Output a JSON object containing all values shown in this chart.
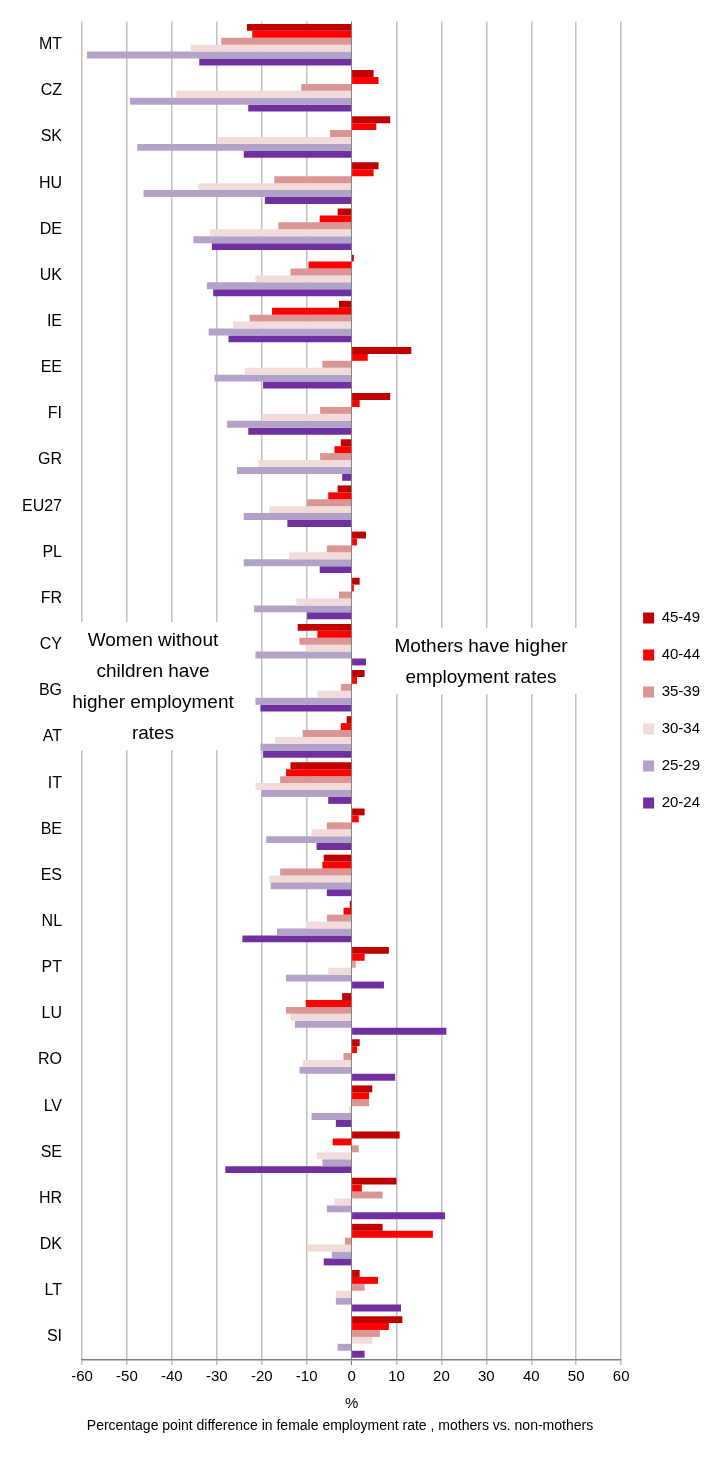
{
  "chart_data": {
    "type": "bar",
    "orientation": "horizontal",
    "xlabel": "%",
    "annotations": [
      "Women without children have higher employment rates",
      "Mothers have higher employment rates",
      "Percentage point difference in female employment rate , mothers vs. non-mothers"
    ],
    "categories": [
      "MT",
      "CZ",
      "SK",
      "HU",
      "DE",
      "UK",
      "IE",
      "EE",
      "FI",
      "GR",
      "EU27",
      "PL",
      "FR",
      "CY",
      "BG",
      "AT",
      "IT",
      "BE",
      "ES",
      "NL",
      "PT",
      "LU",
      "RO",
      "LV",
      "SE",
      "HR",
      "DK",
      "LT",
      "SI"
    ],
    "series": [
      {
        "name": "45-49",
        "color": "#c00000",
        "values": [
          -23.3,
          4.9,
          8.6,
          6.0,
          -3.1,
          0.5,
          -2.8,
          13.3,
          8.6,
          -2.4,
          -3.1,
          3.2,
          1.8,
          -12.0,
          2.9,
          -1.1,
          -13.6,
          2.9,
          -6.2,
          -0.4,
          8.3,
          -2.1,
          1.8,
          4.6,
          10.7,
          10.0,
          6.9,
          1.8,
          11.3
        ]
      },
      {
        "name": "40-44",
        "color": "#ff0000",
        "values": [
          -22.1,
          6.0,
          5.5,
          4.9,
          -7.1,
          -9.6,
          -17.7,
          3.6,
          1.8,
          -3.8,
          -5.2,
          1.2,
          0.5,
          -7.6,
          1.2,
          -2.4,
          -14.6,
          1.6,
          -6.5,
          -1.8,
          2.9,
          -10.2,
          1.2,
          3.9,
          -4.2,
          2.3,
          18.1,
          5.9,
          8.3
        ]
      },
      {
        "name": "35-39",
        "color": "#da9694",
        "values": [
          -29.0,
          -11.2,
          -4.8,
          -17.2,
          -16.3,
          -13.6,
          -22.7,
          -6.5,
          -7.0,
          -7.0,
          -9.9,
          -5.5,
          -2.8,
          -11.6,
          -2.4,
          -10.9,
          -15.9,
          -5.5,
          -15.9,
          -5.5,
          0.9,
          -14.6,
          -1.8,
          3.9,
          1.6,
          6.9,
          -1.5,
          2.9,
          6.3
        ]
      },
      {
        "name": "30-34",
        "color": "#f2dcdb",
        "values": [
          -35.8,
          -39.0,
          -29.8,
          -34.1,
          -31.5,
          -21.4,
          -26.4,
          -23.8,
          -20.0,
          -20.7,
          -18.3,
          -13.9,
          -12.3,
          -10.2,
          -7.6,
          -17.0,
          -21.4,
          -8.9,
          -18.3,
          -10.2,
          -5.2,
          -13.6,
          -10.9,
          -0.6,
          -7.8,
          -3.8,
          -9.8,
          -3.5,
          4.6
        ]
      },
      {
        "name": "25-29",
        "color": "#b3a2c7",
        "values": [
          -58.9,
          -49.3,
          -47.7,
          -46.3,
          -35.2,
          -32.2,
          -31.8,
          -30.5,
          -27.7,
          -25.5,
          -24.0,
          -24.0,
          -21.7,
          -21.4,
          -21.4,
          -20.3,
          -20.0,
          -19.0,
          -18.0,
          -16.6,
          -14.6,
          -12.6,
          -11.6,
          -8.9,
          -6.5,
          -5.5,
          -4.4,
          -3.5,
          -3.1
        ]
      },
      {
        "name": "20-24",
        "color": "#7030a0",
        "values": [
          -33.9,
          -23.0,
          -24.0,
          -19.3,
          -31.1,
          -30.8,
          -27.4,
          -19.7,
          -23.0,
          -2.1,
          -14.3,
          -7.1,
          -9.9,
          3.6,
          -20.3,
          -19.7,
          -5.2,
          -7.8,
          -5.5,
          -24.3,
          7.2,
          21.1,
          9.7,
          -3.5,
          -28.1,
          20.8,
          -6.2,
          11.0,
          2.9
        ]
      }
    ],
    "xlim": [
      -60,
      60
    ],
    "xticks": [
      -60,
      -50,
      -40,
      -30,
      -20,
      -10,
      0,
      10,
      20,
      30,
      40,
      50,
      60
    ],
    "grid": "x",
    "legend": "right"
  }
}
